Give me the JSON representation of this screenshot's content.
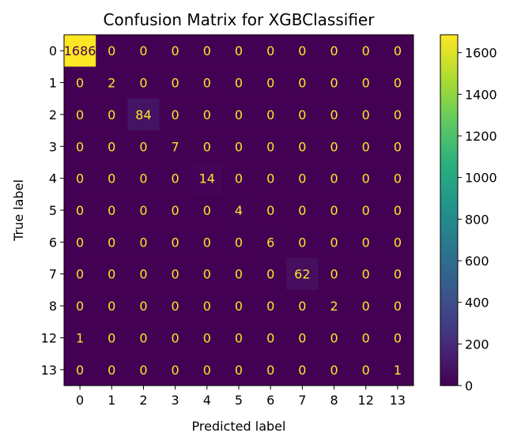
{
  "chart_data": {
    "type": "heatmap",
    "title": "Confusion Matrix for XGBClassifier",
    "xlabel": "Predicted label",
    "ylabel": "True label",
    "row_labels": [
      "0",
      "1",
      "2",
      "3",
      "4",
      "5",
      "6",
      "7",
      "8",
      "12",
      "13"
    ],
    "col_labels": [
      "0",
      "1",
      "2",
      "3",
      "4",
      "5",
      "6",
      "7",
      "8",
      "12",
      "13"
    ],
    "values": [
      [
        1686,
        0,
        0,
        0,
        0,
        0,
        0,
        0,
        0,
        0,
        0
      ],
      [
        0,
        2,
        0,
        0,
        0,
        0,
        0,
        0,
        0,
        0,
        0
      ],
      [
        0,
        0,
        84,
        0,
        0,
        0,
        0,
        0,
        0,
        0,
        0
      ],
      [
        0,
        0,
        0,
        7,
        0,
        0,
        0,
        0,
        0,
        0,
        0
      ],
      [
        0,
        0,
        0,
        0,
        14,
        0,
        0,
        0,
        0,
        0,
        0
      ],
      [
        0,
        0,
        0,
        0,
        0,
        4,
        0,
        0,
        0,
        0,
        0
      ],
      [
        0,
        0,
        0,
        0,
        0,
        0,
        6,
        0,
        0,
        0,
        0
      ],
      [
        0,
        0,
        0,
        0,
        0,
        0,
        0,
        62,
        0,
        0,
        0
      ],
      [
        0,
        0,
        0,
        0,
        0,
        0,
        0,
        0,
        2,
        0,
        0
      ],
      [
        1,
        0,
        0,
        0,
        0,
        0,
        0,
        0,
        0,
        0,
        0
      ],
      [
        0,
        0,
        0,
        0,
        0,
        0,
        0,
        0,
        0,
        0,
        1
      ]
    ],
    "colorbar": {
      "colormap": "viridis",
      "min": 0,
      "max": 1686,
      "ticks": [
        "0",
        "200",
        "400",
        "600",
        "800",
        "1000",
        "1200",
        "1400",
        "1600"
      ]
    },
    "colors": {
      "low_text": "#fde725",
      "high_text": "#440154"
    }
  }
}
